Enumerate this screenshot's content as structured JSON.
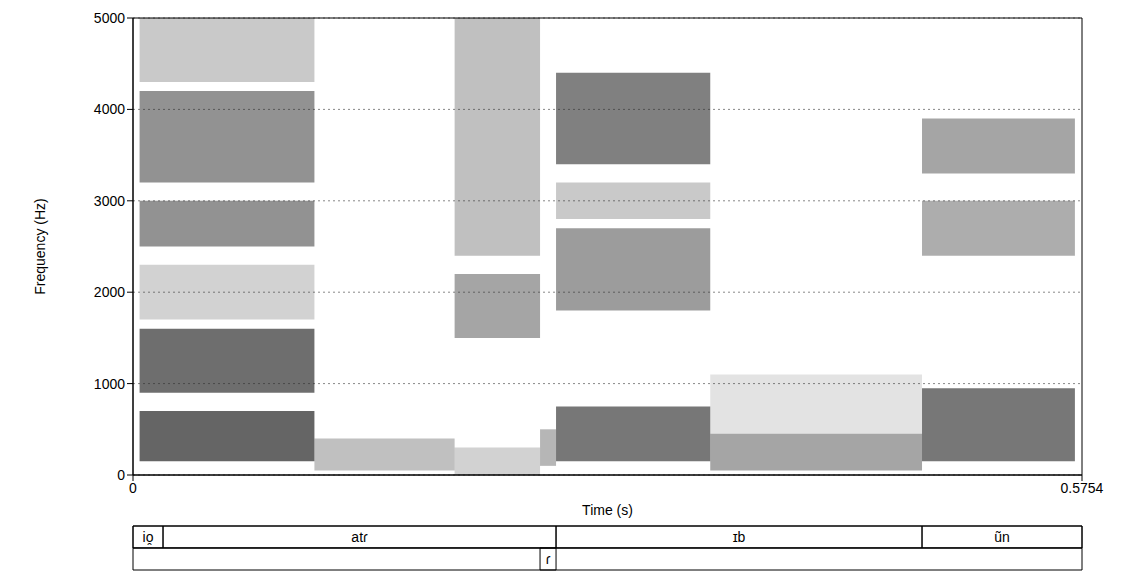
{
  "chart_data": {
    "type": "spectrogram",
    "x_label": "Time (s)",
    "y_label": "Frequency (Hz)",
    "xlim": [
      0,
      0.5754
    ],
    "xticks": [
      0,
      0.5754
    ],
    "ylim": [
      0,
      5000
    ],
    "yticks": [
      0,
      1000,
      2000,
      3000,
      4000,
      5000
    ],
    "grid": true,
    "color": "#2a2a2a",
    "energy": [
      {
        "t0": 0.004,
        "t1": 0.11,
        "f0": 150,
        "f1": 700,
        "level": 0.85
      },
      {
        "t0": 0.004,
        "t1": 0.11,
        "f0": 900,
        "f1": 1600,
        "level": 0.8
      },
      {
        "t0": 0.004,
        "t1": 0.11,
        "f0": 1700,
        "f1": 2300,
        "level": 0.25
      },
      {
        "t0": 0.004,
        "t1": 0.11,
        "f0": 2500,
        "f1": 3000,
        "level": 0.6
      },
      {
        "t0": 0.004,
        "t1": 0.11,
        "f0": 3200,
        "f1": 4200,
        "level": 0.6
      },
      {
        "t0": 0.004,
        "t1": 0.11,
        "f0": 4300,
        "f1": 5000,
        "level": 0.3
      },
      {
        "t0": 0.11,
        "t1": 0.195,
        "f0": 50,
        "f1": 400,
        "level": 0.35
      },
      {
        "t0": 0.195,
        "t1": 0.2468,
        "f0": 0,
        "f1": 300,
        "level": 0.25
      },
      {
        "t0": 0.195,
        "t1": 0.2468,
        "f0": 1500,
        "f1": 2200,
        "level": 0.5
      },
      {
        "t0": 0.195,
        "t1": 0.2468,
        "f0": 2400,
        "f1": 5000,
        "level": 0.35
      },
      {
        "t0": 0.2468,
        "t1": 0.2565,
        "f0": 100,
        "f1": 500,
        "level": 0.4
      },
      {
        "t0": 0.2565,
        "t1": 0.35,
        "f0": 150,
        "f1": 750,
        "level": 0.75
      },
      {
        "t0": 0.2565,
        "t1": 0.35,
        "f0": 1800,
        "f1": 2700,
        "level": 0.55
      },
      {
        "t0": 0.2565,
        "t1": 0.35,
        "f0": 2800,
        "f1": 3200,
        "level": 0.3
      },
      {
        "t0": 0.2565,
        "t1": 0.35,
        "f0": 3400,
        "f1": 4400,
        "level": 0.7
      },
      {
        "t0": 0.35,
        "t1": 0.4784,
        "f0": 50,
        "f1": 450,
        "level": 0.5
      },
      {
        "t0": 0.35,
        "t1": 0.4784,
        "f0": 450,
        "f1": 1100,
        "level": 0.15
      },
      {
        "t0": 0.4784,
        "t1": 0.5711,
        "f0": 150,
        "f1": 950,
        "level": 0.75
      },
      {
        "t0": 0.4784,
        "t1": 0.5711,
        "f0": 2400,
        "f1": 3000,
        "level": 0.45
      },
      {
        "t0": 0.4784,
        "t1": 0.5711,
        "f0": 3300,
        "f1": 3900,
        "level": 0.5
      }
    ],
    "tiers": [
      [
        {
          "start": 0,
          "end": 0.0182,
          "label": "io̯"
        },
        {
          "start": 0.0182,
          "end": 0.2565,
          "label": "atɾ"
        },
        {
          "start": 0.2565,
          "end": 0.4784,
          "label": "ɪb"
        },
        {
          "start": 0.4784,
          "end": 0.5754,
          "label": "ũn"
        }
      ],
      [
        {
          "start": 0.2468,
          "end": 0.2565,
          "label": "ɾ"
        }
      ]
    ]
  }
}
